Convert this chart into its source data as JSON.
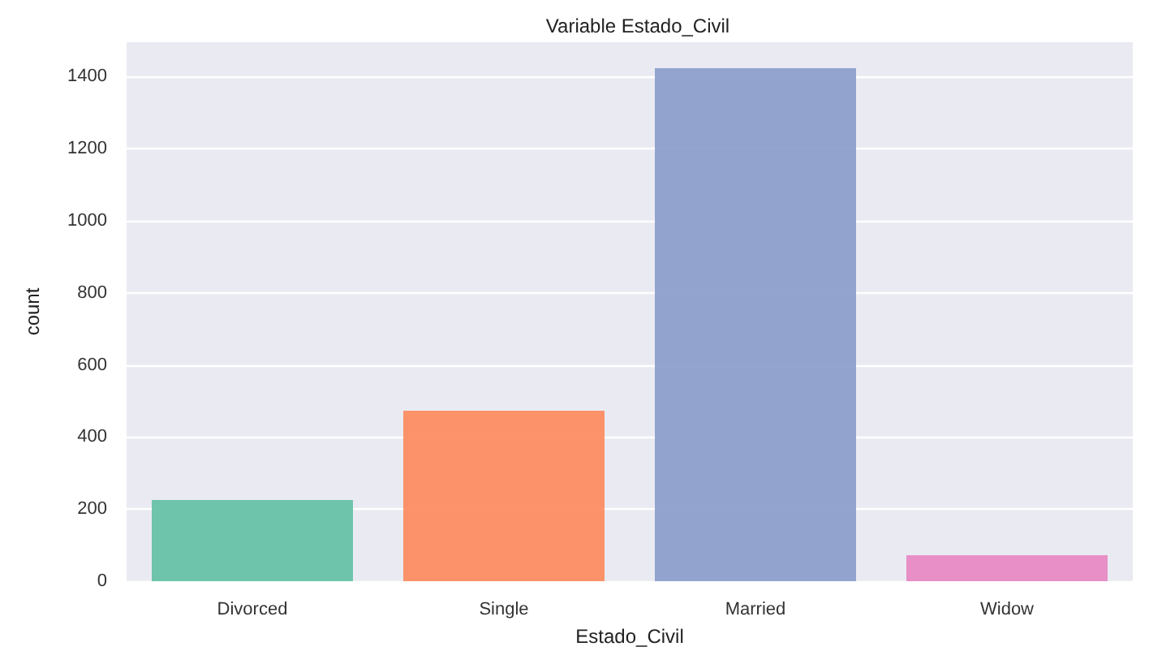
{
  "chart_data": {
    "type": "bar",
    "title": "Variable Estado_Civil",
    "xlabel": "Estado_Civil",
    "ylabel": "count",
    "categories": [
      "Divorced",
      "Single",
      "Married",
      "Widow"
    ],
    "values": [
      225,
      473,
      1423,
      72
    ],
    "colors": [
      "#66c2a5",
      "#fc8d62",
      "#8da0cb",
      "#e78ac3"
    ],
    "ylim": [
      0,
      1495
    ],
    "yticks": [
      0,
      200,
      400,
      600,
      800,
      1000,
      1200,
      1400
    ],
    "grid": "y"
  }
}
